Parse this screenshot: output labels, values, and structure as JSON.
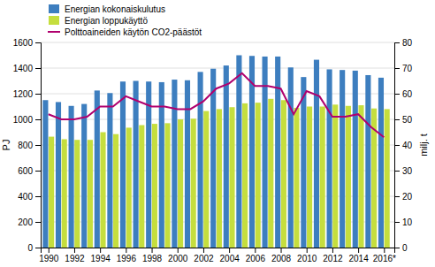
{
  "chart_data": {
    "type": "bar",
    "x": [
      1990,
      1991,
      1992,
      1993,
      1994,
      1995,
      1996,
      1997,
      1998,
      1999,
      2000,
      2001,
      2002,
      2003,
      2004,
      2005,
      2006,
      2007,
      2008,
      2009,
      2010,
      2011,
      2012,
      2013,
      2014,
      2015,
      2016
    ],
    "xlim": [
      1989.4,
      2016.8
    ],
    "xticks": [
      1990,
      1992,
      1994,
      1996,
      1998,
      2000,
      2002,
      2004,
      2006,
      2008,
      2010,
      2012,
      2014,
      {
        "value": 2016,
        "label": "2016*"
      }
    ],
    "ylim": [
      0,
      1600
    ],
    "yticks": [
      0,
      200,
      400,
      600,
      800,
      1000,
      1200,
      1400,
      1600
    ],
    "y2lim": [
      0,
      80
    ],
    "y2ticks": [
      0,
      10,
      20,
      30,
      40,
      50,
      60,
      70,
      80
    ],
    "y_label": "PJ",
    "y2_label": "milj. t",
    "grid": true,
    "legend": "upper left",
    "series": [
      {
        "name": "Energian kokonaiskulutus",
        "color": "#3d7ebf",
        "values": [
          1150,
          1135,
          1105,
          1120,
          1225,
          1205,
          1295,
          1300,
          1295,
          1290,
          1310,
          1305,
          1370,
          1395,
          1420,
          1500,
          1495,
          1490,
          1490,
          1405,
          1330,
          1465,
          1390,
          1385,
          1380,
          1345,
          1325
        ]
      },
      {
        "name": "Energian loppukäyttö",
        "color": "#c5de3e",
        "values": [
          865,
          845,
          840,
          840,
          900,
          885,
          935,
          955,
          965,
          970,
          1000,
          1005,
          1065,
          1080,
          1095,
          1125,
          1130,
          1160,
          1150,
          1090,
          1100,
          1100,
          1115,
          1105,
          1110,
          1085,
          1080
        ]
      },
      {
        "name": "Polttoaineiden käytön CO2-päästöt",
        "color": "#b0006e",
        "type": "line",
        "axis": "y2",
        "values": [
          52,
          50,
          50,
          51,
          55,
          55,
          59,
          57,
          55,
          55,
          54,
          54,
          57,
          62,
          64,
          68,
          63,
          63,
          62,
          52,
          61,
          59,
          51,
          51,
          52,
          47,
          43
        ]
      }
    ]
  }
}
